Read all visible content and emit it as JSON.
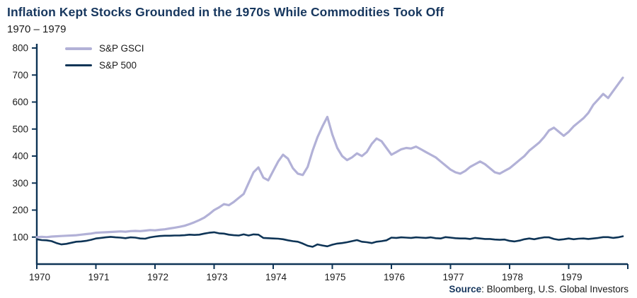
{
  "header": {
    "title": "Inflation Kept Stocks Grounded in the 1970s While Commodities Took Off",
    "subtitle": "1970 – 1979"
  },
  "legend": {
    "items": [
      {
        "label": "S&P GSCI",
        "color": "#b2b1d7"
      },
      {
        "label": "S&P 500",
        "color": "#0e3456"
      }
    ]
  },
  "source": {
    "label": "Source",
    "text": ": Bloomberg, U.S. Global Investors"
  },
  "chart_data": {
    "type": "line",
    "title": "Inflation Kept Stocks Grounded in the 1970s While Commodities Took Off",
    "subtitle": "1970 – 1979",
    "xlabel": "",
    "ylabel": "",
    "x_years": [
      1970,
      1971,
      1972,
      1973,
      1974,
      1975,
      1976,
      1977,
      1978,
      1979
    ],
    "x_unit": "monthly",
    "ylim": [
      0,
      800
    ],
    "yticks": [
      100,
      200,
      300,
      400,
      500,
      600,
      700,
      800
    ],
    "grid": false,
    "legend_position": "top-left-inside",
    "axis_color": "#0e3456",
    "series": [
      {
        "name": "S&P GSCI",
        "color": "#b2b1d7",
        "width": 3.2,
        "values": [
          100,
          101,
          100,
          102,
          103,
          104,
          105,
          106,
          107,
          109,
          111,
          113,
          116,
          117,
          118,
          119,
          120,
          121,
          120,
          122,
          123,
          122,
          124,
          126,
          125,
          127,
          129,
          132,
          135,
          138,
          142,
          148,
          155,
          163,
          172,
          185,
          200,
          210,
          222,
          218,
          230,
          245,
          260,
          300,
          340,
          358,
          320,
          310,
          345,
          380,
          405,
          390,
          355,
          335,
          330,
          360,
          420,
          470,
          510,
          545,
          480,
          430,
          400,
          385,
          395,
          410,
          400,
          415,
          445,
          465,
          455,
          430,
          405,
          415,
          425,
          430,
          428,
          435,
          425,
          415,
          405,
          395,
          380,
          365,
          350,
          340,
          335,
          345,
          360,
          370,
          380,
          370,
          355,
          340,
          335,
          345,
          355,
          370,
          385,
          400,
          420,
          435,
          450,
          470,
          495,
          505,
          490,
          475,
          490,
          510,
          525,
          540,
          560,
          590,
          610,
          630,
          615,
          640,
          665,
          690
        ]
      },
      {
        "name": "S&P 500",
        "color": "#0e3456",
        "width": 2.6,
        "values": [
          92,
          89,
          88,
          85,
          78,
          73,
          75,
          79,
          83,
          84,
          86,
          90,
          95,
          97,
          99,
          101,
          99,
          98,
          96,
          99,
          98,
          95,
          94,
          99,
          102,
          104,
          105,
          105,
          106,
          106,
          107,
          109,
          108,
          109,
          113,
          116,
          118,
          114,
          113,
          109,
          107,
          106,
          110,
          106,
          110,
          109,
          97,
          96,
          95,
          94,
          92,
          88,
          85,
          83,
          76,
          68,
          64,
          73,
          69,
          66,
          72,
          76,
          78,
          81,
          85,
          89,
          83,
          81,
          78,
          83,
          85,
          88,
          98,
          97,
          99,
          98,
          97,
          99,
          98,
          97,
          99,
          96,
          95,
          100,
          98,
          96,
          95,
          95,
          93,
          97,
          95,
          93,
          93,
          91,
          90,
          91,
          86,
          84,
          87,
          92,
          95,
          92,
          96,
          99,
          99,
          93,
          90,
          92,
          95,
          92,
          94,
          95,
          93,
          95,
          97,
          100,
          100,
          97,
          99,
          103
        ]
      }
    ]
  }
}
